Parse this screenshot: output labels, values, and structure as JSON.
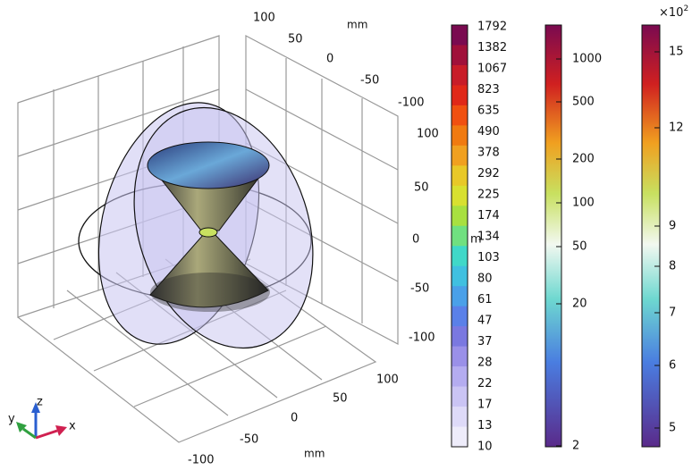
{
  "axes": {
    "y_unit": "mm",
    "x_unit": "mm",
    "y_ticks": [
      "100",
      "50",
      "0",
      "-50",
      "-100"
    ],
    "z_ticks": [
      "100",
      "50",
      "0",
      "-50",
      "-100"
    ],
    "x_ticks": [
      "100",
      "50",
      "0",
      "-50",
      "-100"
    ]
  },
  "triad": {
    "z": "z",
    "x": "x",
    "y": "y"
  },
  "colorbars": [
    {
      "labels": [
        "1792",
        "1382",
        "1067",
        "823",
        "635",
        "490",
        "378",
        "292",
        "225",
        "174",
        "134",
        "103",
        "80",
        "61",
        "47",
        "37",
        "28",
        "22",
        "17",
        "13",
        "10"
      ],
      "clipped_unit": "m"
    },
    {
      "labels": [
        "1000",
        "500",
        "200",
        "100",
        "50",
        "20",
        "2"
      ]
    },
    {
      "labels": [
        "15",
        "12",
        "9",
        "8",
        "7",
        "6",
        "5"
      ],
      "exponent_base": "×10",
      "exponent_power": "2"
    }
  ]
}
